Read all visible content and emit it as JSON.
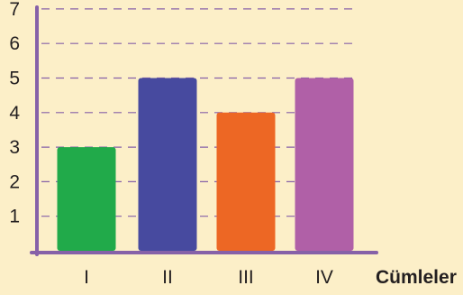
{
  "chart_data": {
    "type": "bar",
    "categories": [
      "I",
      "II",
      "III",
      "IV"
    ],
    "values": [
      3,
      5,
      4,
      5
    ],
    "xlabel": "Cümleler",
    "ylabel": "",
    "ylim": [
      0,
      7
    ],
    "y_ticks": [
      1,
      2,
      3,
      4,
      5,
      6,
      7
    ],
    "grid": "horizontal dashed",
    "bar_colors": [
      "#21aa4a",
      "#474a9f",
      "#ed6724",
      "#b060a7"
    ],
    "axis_color": "#8661a8",
    "background_color": "#fcefc8"
  }
}
